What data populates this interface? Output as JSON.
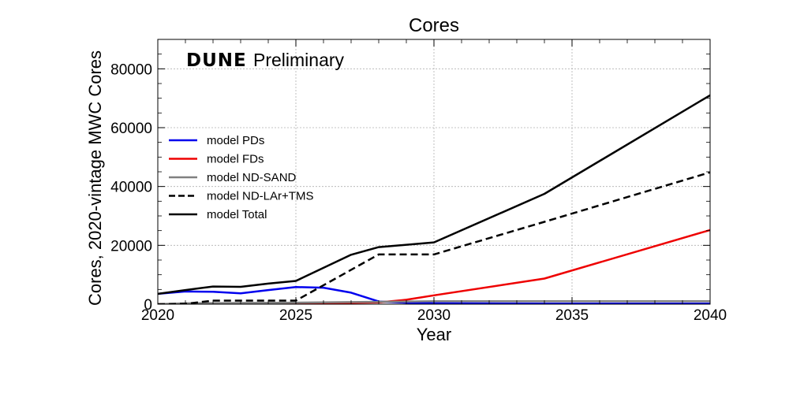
{
  "chart_data": {
    "type": "line",
    "title": "Cores",
    "xlabel": "Year",
    "ylabel": "Cores, 2020-vintage MWC Cores",
    "annotation": {
      "brand": "DUNE",
      "text": "Preliminary"
    },
    "xlim": [
      2020,
      2040
    ],
    "ylim": [
      0,
      90000
    ],
    "xticks": [
      2020,
      2025,
      2030,
      2035,
      2040
    ],
    "yticks": [
      0,
      20000,
      40000,
      60000,
      80000
    ],
    "grid": true,
    "legend_position": "left",
    "series": [
      {
        "name": "model PDs",
        "color": "#0000ee",
        "dash": "solid",
        "x": [
          2020,
          2021,
          2022,
          2023,
          2024,
          2025,
          2026,
          2027,
          2028,
          2029,
          2030,
          2034,
          2040
        ],
        "y": [
          3500,
          4300,
          4200,
          3700,
          4800,
          5800,
          5600,
          3900,
          900,
          500,
          300,
          200,
          200
        ]
      },
      {
        "name": "model FDs",
        "color": "#ee0000",
        "dash": "solid",
        "x": [
          2020,
          2025,
          2028,
          2029,
          2030,
          2034,
          2040
        ],
        "y": [
          0,
          200,
          600,
          1500,
          3000,
          8700,
          25200
        ]
      },
      {
        "name": "model ND-SAND",
        "color": "#808080",
        "dash": "solid",
        "x": [
          2020,
          2021,
          2025,
          2028,
          2030,
          2040
        ],
        "y": [
          0,
          300,
          500,
          800,
          1000,
          1000
        ]
      },
      {
        "name": "model ND-LAr+TMS",
        "color": "#000000",
        "dash": "dashed",
        "x": [
          2020,
          2021,
          2022,
          2025,
          2028,
          2030,
          2034,
          2040
        ],
        "y": [
          0,
          100,
          1200,
          1200,
          16900,
          16900,
          28000,
          44800
        ]
      },
      {
        "name": "model Total",
        "color": "#000000",
        "dash": "solid",
        "x": [
          2020,
          2021,
          2022,
          2023,
          2024,
          2025,
          2027,
          2028,
          2030,
          2034,
          2040
        ],
        "y": [
          3500,
          4800,
          6000,
          5900,
          7000,
          7900,
          16800,
          19400,
          21000,
          37500,
          71000
        ]
      }
    ]
  }
}
